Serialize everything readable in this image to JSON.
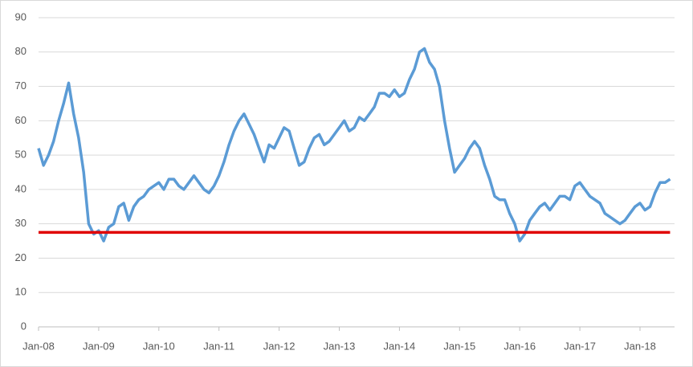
{
  "chart_data": {
    "type": "line",
    "categories": [
      "Jan-08",
      null,
      null,
      null,
      null,
      null,
      null,
      null,
      null,
      null,
      null,
      null,
      "Jan-09",
      null,
      null,
      null,
      null,
      null,
      null,
      null,
      null,
      null,
      null,
      null,
      "Jan-10",
      null,
      null,
      null,
      null,
      null,
      null,
      null,
      null,
      null,
      null,
      null,
      "Jan-11",
      null,
      null,
      null,
      null,
      null,
      null,
      null,
      null,
      null,
      null,
      null,
      "Jan-12",
      null,
      null,
      null,
      null,
      null,
      null,
      null,
      null,
      null,
      null,
      null,
      "Jan-13",
      null,
      null,
      null,
      null,
      null,
      null,
      null,
      null,
      null,
      null,
      null,
      "Jan-14",
      null,
      null,
      null,
      null,
      null,
      null,
      null,
      null,
      null,
      null,
      null,
      "Jan-15",
      null,
      null,
      null,
      null,
      null,
      null,
      null,
      null,
      null,
      null,
      null,
      "Jan-16",
      null,
      null,
      null,
      null,
      null,
      null,
      null,
      null,
      null,
      null,
      null,
      "Jan-17",
      null,
      null,
      null,
      null,
      null,
      null,
      null,
      null,
      null,
      null,
      null,
      "Jan-18",
      null,
      null,
      null,
      null,
      null,
      null
    ],
    "series": [
      {
        "color": "#5b9bd5",
        "values": [
          52,
          47,
          50,
          54,
          60,
          65,
          71,
          62,
          55,
          45,
          30,
          27,
          28,
          25,
          29,
          30,
          35,
          36,
          31,
          35,
          37,
          38,
          40,
          41,
          42,
          40,
          43,
          43,
          41,
          40,
          42,
          44,
          42,
          40,
          39,
          41,
          44,
          48,
          53,
          57,
          60,
          62,
          59,
          56,
          52,
          48,
          53,
          52,
          55,
          58,
          57,
          52,
          47,
          48,
          52,
          55,
          56,
          53,
          54,
          56,
          58,
          60,
          57,
          58,
          61,
          60,
          62,
          64,
          68,
          68,
          67,
          69,
          67,
          68,
          72,
          75,
          80,
          81,
          77,
          75,
          70,
          60,
          52,
          45,
          47,
          49,
          52,
          54,
          52,
          47,
          43,
          38,
          37,
          37,
          33,
          30,
          25,
          27,
          31,
          33,
          35,
          36,
          34,
          36,
          38,
          38,
          37,
          41,
          42,
          40,
          38,
          37,
          36,
          33,
          32,
          31,
          30,
          31,
          33,
          35,
          36,
          34,
          35,
          39,
          42,
          42,
          43
        ]
      }
    ],
    "reference_line": {
      "value": 27.5,
      "color": "#e00000"
    },
    "ylim": [
      0,
      90
    ],
    "yticks": [
      0,
      10,
      20,
      30,
      40,
      50,
      60,
      70,
      80,
      90
    ],
    "grid": true
  }
}
